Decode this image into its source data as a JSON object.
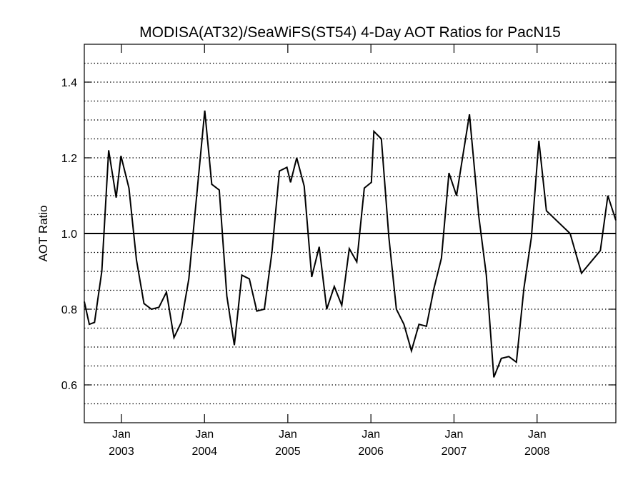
{
  "chart_data": {
    "type": "line",
    "title": "MODISA(AT32)/SeaWiFS(ST54) 4-Day AOT Ratios for PacN15",
    "xlabel": "",
    "ylabel": "AOT Ratio",
    "xlim": [
      "2002-07-22",
      "2008-12-12"
    ],
    "ylim": [
      0.5,
      1.5
    ],
    "yticks": [
      {
        "value": 0.6,
        "label": "0.6"
      },
      {
        "value": 0.8,
        "label": "0.8"
      },
      {
        "value": 1.0,
        "label": "1.0"
      },
      {
        "value": 1.2,
        "label": "1.2"
      },
      {
        "value": 1.4,
        "label": "1.4"
      }
    ],
    "xticks": [
      {
        "date": "2003-01-01",
        "month": "Jan",
        "year": "2003"
      },
      {
        "date": "2004-01-01",
        "month": "Jan",
        "year": "2004"
      },
      {
        "date": "2005-01-01",
        "month": "Jan",
        "year": "2005"
      },
      {
        "date": "2006-01-01",
        "month": "Jan",
        "year": "2006"
      },
      {
        "date": "2007-01-01",
        "month": "Jan",
        "year": "2007"
      },
      {
        "date": "2008-01-01",
        "month": "Jan",
        "year": "2008"
      }
    ],
    "grid": {
      "y": true,
      "style": "dotted",
      "step": 0.05
    },
    "reference_line": 1.0,
    "series": [
      {
        "color": "#000000",
        "points": [
          [
            "2002-07-22",
            0.82
          ],
          [
            "2002-08-13",
            0.76
          ],
          [
            "2002-09-05",
            0.765
          ],
          [
            "2002-10-07",
            0.9
          ],
          [
            "2002-11-06",
            1.22
          ],
          [
            "2002-12-09",
            1.095
          ],
          [
            "2002-12-30",
            1.205
          ],
          [
            "2003-02-03",
            1.12
          ],
          [
            "2003-03-08",
            0.93
          ],
          [
            "2003-04-10",
            0.815
          ],
          [
            "2003-05-13",
            0.8
          ],
          [
            "2003-06-15",
            0.805
          ],
          [
            "2003-07-18",
            0.845
          ],
          [
            "2003-08-20",
            0.725
          ],
          [
            "2003-09-21",
            0.765
          ],
          [
            "2003-10-24",
            0.88
          ],
          [
            "2003-11-26",
            1.09
          ],
          [
            "2004-01-02",
            1.325
          ],
          [
            "2004-02-02",
            1.13
          ],
          [
            "2004-03-06",
            1.115
          ],
          [
            "2004-04-08",
            0.835
          ],
          [
            "2004-05-11",
            0.705
          ],
          [
            "2004-06-13",
            0.89
          ],
          [
            "2004-07-16",
            0.88
          ],
          [
            "2004-08-18",
            0.795
          ],
          [
            "2004-09-20",
            0.8
          ],
          [
            "2004-10-23",
            0.95
          ],
          [
            "2004-11-25",
            1.165
          ],
          [
            "2004-12-28",
            1.175
          ],
          [
            "2005-01-13",
            1.135
          ],
          [
            "2005-02-09",
            1.2
          ],
          [
            "2005-03-14",
            1.125
          ],
          [
            "2005-04-16",
            0.885
          ],
          [
            "2005-05-19",
            0.965
          ],
          [
            "2005-06-21",
            0.8
          ],
          [
            "2005-07-24",
            0.86
          ],
          [
            "2005-08-26",
            0.81
          ],
          [
            "2005-09-28",
            0.96
          ],
          [
            "2005-10-31",
            0.925
          ],
          [
            "2005-12-03",
            1.12
          ],
          [
            "2006-01-03",
            1.135
          ],
          [
            "2006-01-14",
            1.27
          ],
          [
            "2006-02-16",
            1.25
          ],
          [
            "2006-03-21",
            0.99
          ],
          [
            "2006-04-23",
            0.8
          ],
          [
            "2006-05-26",
            0.76
          ],
          [
            "2006-06-28",
            0.69
          ],
          [
            "2006-07-31",
            0.76
          ],
          [
            "2006-09-02",
            0.755
          ],
          [
            "2006-10-05",
            0.855
          ],
          [
            "2006-11-07",
            0.935
          ],
          [
            "2006-12-10",
            1.16
          ],
          [
            "2007-01-12",
            1.1
          ],
          [
            "2007-02-14",
            1.225
          ],
          [
            "2007-03-10",
            1.315
          ],
          [
            "2007-04-20",
            1.045
          ],
          [
            "2007-05-23",
            0.89
          ],
          [
            "2007-06-25",
            0.62
          ],
          [
            "2007-07-28",
            0.67
          ],
          [
            "2007-08-30",
            0.675
          ],
          [
            "2007-10-02",
            0.66
          ],
          [
            "2007-11-04",
            0.855
          ],
          [
            "2007-12-07",
            0.99
          ],
          [
            "2008-01-09",
            1.245
          ],
          [
            "2008-02-11",
            1.06
          ],
          [
            "2008-05-25",
            1.0
          ],
          [
            "2008-07-14",
            0.895
          ],
          [
            "2008-10-05",
            0.955
          ],
          [
            "2008-11-07",
            1.1
          ],
          [
            "2008-12-12",
            1.035
          ]
        ]
      }
    ]
  }
}
